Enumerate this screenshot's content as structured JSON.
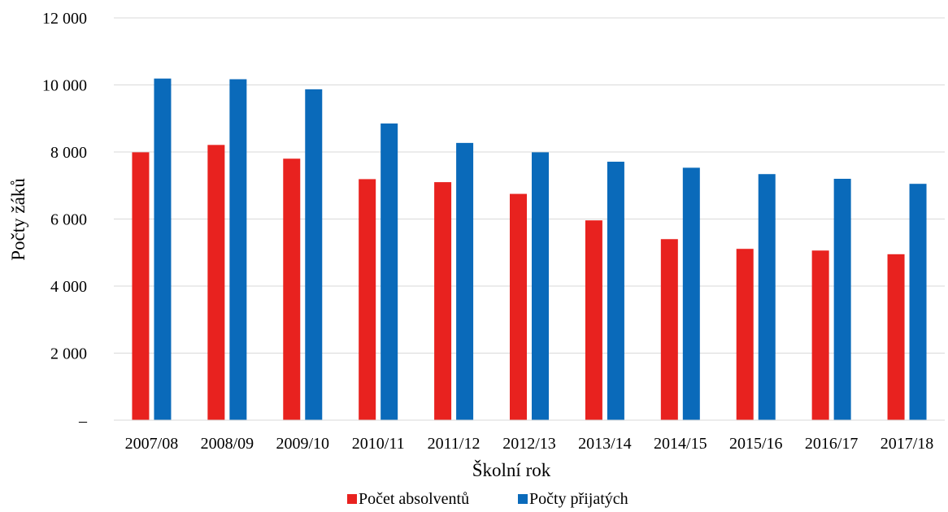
{
  "chart_data": {
    "type": "bar",
    "xlabel": "Školní rok",
    "ylabel": "Počty žáků",
    "categories": [
      "2007/08",
      "2008/09",
      "2009/10",
      "2010/11",
      "2011/12",
      "2012/13",
      "2013/14",
      "2014/15",
      "2015/16",
      "2016/17",
      "2017/18"
    ],
    "series": [
      {
        "name": "Počet absolventů",
        "color": "#e8221f",
        "values": [
          7990,
          8210,
          7800,
          7190,
          7100,
          6750,
          5960,
          5400,
          5110,
          5060,
          4950
        ]
      },
      {
        "name": "Počty přijatých",
        "color": "#0a6aba",
        "values": [
          10190,
          10170,
          9870,
          8850,
          8270,
          7990,
          7710,
          7530,
          7340,
          7200,
          7050
        ]
      }
    ],
    "ylim": [
      0,
      12000
    ],
    "yticks": [
      0,
      2000,
      4000,
      6000,
      8000,
      10000,
      12000
    ],
    "ytick_labels": [
      "–",
      "2 000",
      "4 000",
      "6 000",
      "8 000",
      "10 000",
      "12 000"
    ],
    "grid": true,
    "legend_position": "bottom"
  }
}
